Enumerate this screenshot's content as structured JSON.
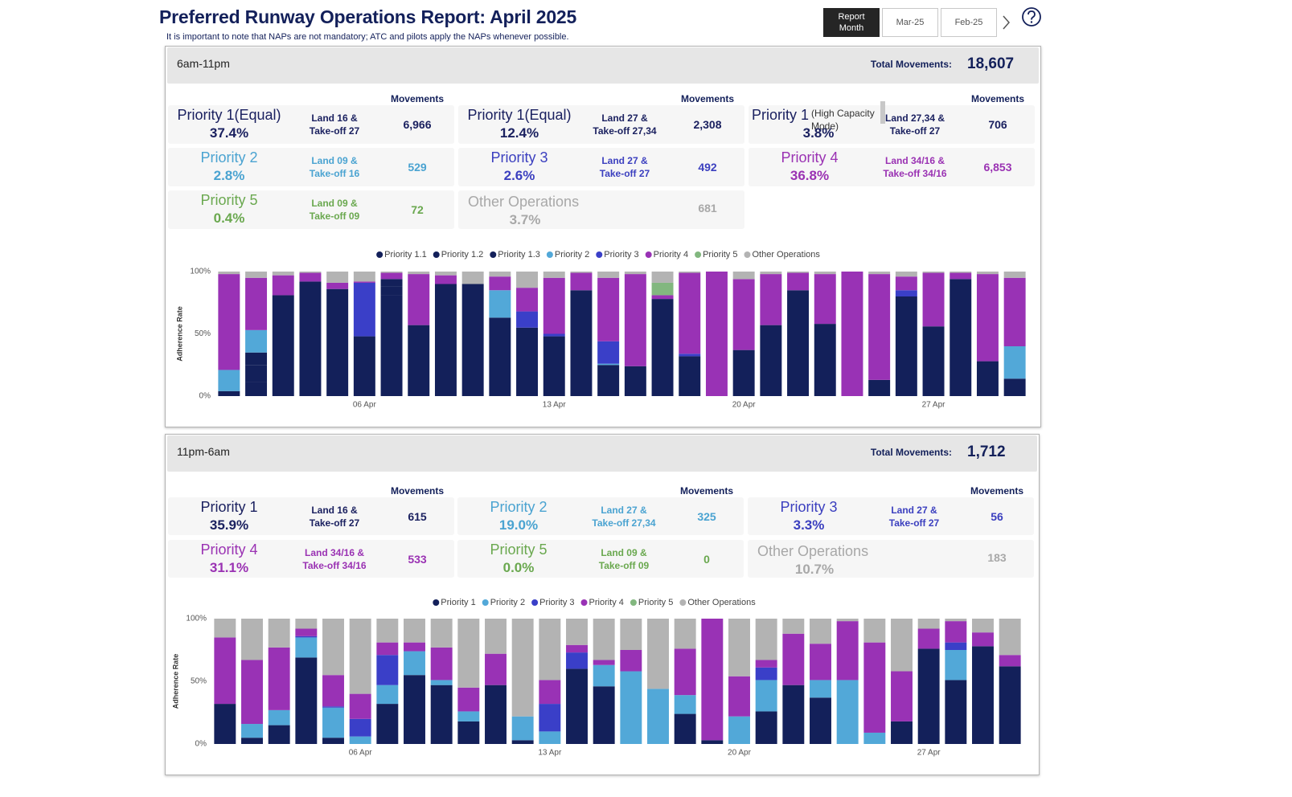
{
  "header": {
    "title": "Preferred Runway Operations Report: April 2025",
    "subtitle": "It is important to note that NAPs are not mandatory; ATC and pilots apply the NAPs whenever possible.",
    "buttons": [
      "Report Month",
      "Mar-25",
      "Feb-25"
    ]
  },
  "sections": [
    {
      "label": "6am-11pm",
      "total_label": "Total Movements:",
      "total": "18,607",
      "movements_label": "Movements",
      "cards": [
        {
          "title": "Priority 1(Equal)",
          "percent": "37.4%",
          "runway": [
            "Land 16 &",
            "Take-off 27"
          ],
          "movements": "6,966",
          "color": "#1b2160"
        },
        {
          "title": "Priority 1(Equal)",
          "percent": "12.4%",
          "runway": [
            "Land 27 &",
            "Take-off 27,34"
          ],
          "movements": "2,308",
          "color": "#1b2160"
        },
        {
          "title": "Priority 1",
          "note": "(High Capacity Mode)",
          "percent": "3.8%",
          "runway": [
            "Land 27,34 &",
            "Take-off 27"
          ],
          "movements": "706",
          "color": "#1b2160"
        },
        {
          "title": "Priority 2",
          "percent": "2.8%",
          "runway": [
            "Land 09 &",
            "Take-off 16"
          ],
          "movements": "529",
          "color": "#4aa3d1"
        },
        {
          "title": "Priority 3",
          "percent": "2.6%",
          "runway": [
            "Land 27 &",
            "Take-off 27"
          ],
          "movements": "492",
          "color": "#3b3fbf"
        },
        {
          "title": "Priority 4",
          "percent": "36.8%",
          "runway": [
            "Land 34/16 &",
            "Take-off 34/16"
          ],
          "movements": "6,853",
          "color": "#9a32b3"
        },
        {
          "title": "Priority 5",
          "percent": "0.4%",
          "runway": [
            "Land 09 &",
            "Take-off 09"
          ],
          "movements": "72",
          "color": "#6aa84f"
        },
        {
          "title": "Other Operations",
          "percent": "3.7%",
          "movements": "681",
          "color": "#a8a8a8"
        }
      ]
    },
    {
      "label": "11pm-6am",
      "total_label": "Total Movements:",
      "total": "1,712",
      "movements_label": "Movements",
      "cards": [
        {
          "title": "Priority 1",
          "percent": "35.9%",
          "runway": [
            "Land 16 &",
            "Take-off 27"
          ],
          "movements": "615",
          "color": "#1b2160"
        },
        {
          "title": "Priority 2",
          "percent": "19.0%",
          "runway": [
            "Land 27 &",
            "Take-off 27,34"
          ],
          "movements": "325",
          "color": "#4aa3d1"
        },
        {
          "title": "Priority 3",
          "percent": "3.3%",
          "runway": [
            "Land 27 &",
            "Take-off 27"
          ],
          "movements": "56",
          "color": "#3b3fbf"
        },
        {
          "title": "Priority 4",
          "percent": "31.1%",
          "runway": [
            "Land 34/16 &",
            "Take-off 34/16"
          ],
          "movements": "533",
          "color": "#9a32b3"
        },
        {
          "title": "Priority 5",
          "percent": "0.0%",
          "runway": [
            "Land 09 &",
            "Take-off 09"
          ],
          "movements": "0",
          "color": "#6aa84f"
        },
        {
          "title": "Other Operations",
          "percent": "10.7%",
          "movements": "183",
          "color": "#a8a8a8"
        }
      ]
    }
  ],
  "chart_data": [
    {
      "type": "bar",
      "stacked": true,
      "legend": "top",
      "ylabel": "Adherence Rate",
      "categories": [
        null,
        null,
        null,
        null,
        null,
        "06 Apr",
        null,
        null,
        null,
        null,
        null,
        null,
        "13 Apr",
        null,
        null,
        null,
        null,
        null,
        null,
        "20 Apr",
        null,
        null,
        null,
        null,
        null,
        null,
        "27 Apr",
        null,
        null,
        null
      ],
      "ylim": [
        0,
        100
      ],
      "yticks": [
        {
          "value": 0,
          "label": "0%"
        },
        {
          "value": 50,
          "label": "50%"
        },
        {
          "value": 100,
          "label": "100%"
        }
      ],
      "series": [
        {
          "name": "Priority 1.1",
          "color": "#13205a",
          "values": [
            4,
            11,
            81,
            92,
            86,
            48,
            81,
            57,
            90,
            90,
            63,
            55,
            48,
            85,
            25,
            24,
            78,
            32,
            0,
            37,
            57,
            85,
            58,
            0,
            13,
            80,
            56,
            94,
            28,
            14
          ]
        },
        {
          "name": "Priority 1.2",
          "color": "#13205a",
          "values": [
            0,
            14,
            0,
            0,
            0,
            0,
            7,
            0,
            0,
            0,
            0,
            0,
            0,
            0,
            0,
            0,
            0,
            0,
            0,
            0,
            0,
            0,
            0,
            0,
            0,
            0,
            0,
            0,
            0,
            0
          ]
        },
        {
          "name": "Priority 1.3",
          "color": "#13205a",
          "values": [
            0,
            10,
            0,
            0,
            0,
            0,
            6,
            0,
            0,
            0,
            0,
            0,
            0,
            0,
            0,
            0,
            0,
            0,
            0,
            0,
            0,
            0,
            0,
            0,
            0,
            0,
            0,
            0,
            0,
            0
          ]
        },
        {
          "name": "Priority 2",
          "color": "#52a8d8",
          "values": [
            17,
            18,
            0,
            0,
            0,
            0,
            0,
            0,
            0,
            0,
            22,
            0,
            0,
            0,
            1,
            0,
            0,
            0,
            0,
            0,
            0,
            0,
            0,
            0,
            0,
            0,
            0,
            0,
            0,
            26
          ]
        },
        {
          "name": "Priority 3",
          "color": "#3a3fc8",
          "values": [
            0,
            0,
            0,
            0,
            0,
            43,
            0,
            0,
            0,
            0,
            0,
            13,
            2,
            0,
            18,
            0,
            0,
            2,
            0,
            0,
            0,
            0,
            0,
            0,
            0,
            5,
            0,
            0,
            0,
            0
          ]
        },
        {
          "name": "Priority 4",
          "color": "#9932b5",
          "values": [
            77,
            42,
            16,
            7,
            5,
            1,
            5,
            41,
            7,
            0,
            11,
            19,
            45,
            14,
            51,
            74,
            3,
            65,
            100,
            57,
            41,
            14,
            40,
            100,
            85,
            11,
            43,
            5,
            70,
            55
          ]
        },
        {
          "name": "Priority 5",
          "color": "#82b77f",
          "values": [
            0,
            0,
            0,
            0,
            0,
            0,
            0,
            0,
            0,
            0,
            0,
            0,
            0,
            0,
            0,
            0,
            10,
            0,
            0,
            0,
            0,
            0,
            0,
            0,
            0,
            0,
            0,
            0,
            0,
            0
          ]
        },
        {
          "name": "Other Operations",
          "color": "#b3b3b3",
          "values": [
            2,
            5,
            3,
            1,
            9,
            8,
            1,
            2,
            3,
            10,
            4,
            13,
            5,
            1,
            5,
            2,
            9,
            1,
            0,
            6,
            2,
            1,
            2,
            0,
            2,
            4,
            1,
            1,
            2,
            5
          ]
        }
      ]
    },
    {
      "type": "bar",
      "stacked": true,
      "legend": "top",
      "ylabel": "Adherence Rate",
      "categories": [
        null,
        null,
        null,
        null,
        null,
        "06 Apr",
        null,
        null,
        null,
        null,
        null,
        null,
        "13 Apr",
        null,
        null,
        null,
        null,
        null,
        null,
        "20 Apr",
        null,
        null,
        null,
        null,
        null,
        null,
        "27 Apr",
        null,
        null,
        null
      ],
      "ylim": [
        0,
        100
      ],
      "yticks": [
        {
          "value": 0,
          "label": "0%"
        },
        {
          "value": 50,
          "label": "50%"
        },
        {
          "value": 100,
          "label": "100%"
        }
      ],
      "series": [
        {
          "name": "Priority 1",
          "color": "#13205a",
          "values": [
            32,
            5,
            15,
            69,
            5,
            0,
            32,
            55,
            47,
            18,
            47,
            3,
            0,
            60,
            46,
            0,
            0,
            24,
            3,
            0,
            26,
            47,
            37,
            0,
            0,
            18,
            76,
            51,
            78,
            62
          ]
        },
        {
          "name": "Priority 2",
          "color": "#52a8d8",
          "values": [
            0,
            11,
            12,
            16,
            24,
            6,
            15,
            19,
            4,
            8,
            0,
            19,
            10,
            0,
            17,
            58,
            44,
            15,
            0,
            22,
            25,
            0,
            14,
            51,
            9,
            0,
            0,
            24,
            0,
            0
          ]
        },
        {
          "name": "Priority 3",
          "color": "#3a3fc8",
          "values": [
            0,
            0,
            0,
            1,
            1,
            14,
            24,
            0,
            0,
            0,
            0,
            0,
            22,
            13,
            0,
            0,
            0,
            0,
            0,
            0,
            10,
            0,
            0,
            0,
            0,
            0,
            0,
            6,
            0,
            0
          ]
        },
        {
          "name": "Priority 4",
          "color": "#9932b5",
          "values": [
            53,
            51,
            50,
            6,
            25,
            20,
            10,
            7,
            26,
            19,
            25,
            0,
            19,
            6,
            4,
            17,
            0,
            37,
            97,
            32,
            6,
            41,
            29,
            47,
            72,
            40,
            16,
            17,
            11,
            9
          ]
        },
        {
          "name": "Priority 5",
          "color": "#82b77f",
          "values": [
            0,
            0,
            0,
            0,
            0,
            0,
            0,
            0,
            0,
            0,
            0,
            0,
            0,
            0,
            0,
            0,
            0,
            0,
            0,
            0,
            0,
            0,
            0,
            0,
            0,
            0,
            0,
            0,
            0,
            0
          ]
        },
        {
          "name": "Other Operations",
          "color": "#b3b3b3",
          "values": [
            15,
            33,
            23,
            8,
            45,
            60,
            19,
            19,
            23,
            55,
            28,
            78,
            49,
            21,
            33,
            25,
            56,
            24,
            0,
            46,
            33,
            12,
            20,
            2,
            19,
            42,
            8,
            2,
            11,
            29
          ]
        }
      ]
    }
  ]
}
